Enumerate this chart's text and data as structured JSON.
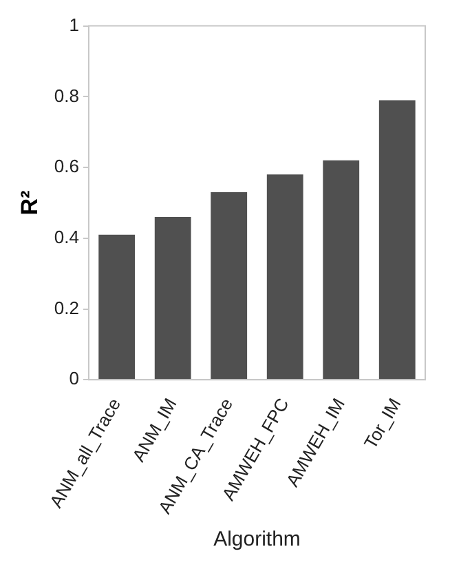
{
  "chart_data": {
    "type": "bar",
    "xlabel": "Algorithm",
    "ylabel": "R²",
    "categories": [
      "ANM_all_Trace",
      "ANM_IM",
      "ANM_CA_Trace",
      "AMWEH_FPC",
      "AMWEH_IM",
      "Tor_IM"
    ],
    "values": [
      0.41,
      0.46,
      0.53,
      0.58,
      0.62,
      0.79
    ],
    "color": "#505050",
    "ylim": [
      0,
      1
    ],
    "yticks": [
      0,
      0.2,
      0.4,
      0.6,
      0.8,
      1
    ],
    "grid": false,
    "legend": false
  }
}
